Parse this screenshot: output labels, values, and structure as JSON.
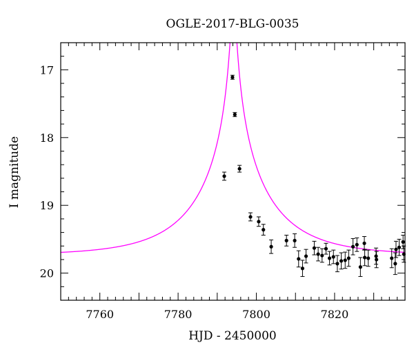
{
  "chart_data": {
    "type": "scatter",
    "title": "OGLE-2017-BLG-0035",
    "xlabel": "HJD - 2450000",
    "ylabel": "I magnitude",
    "xlim": [
      7750,
      7838
    ],
    "ylim": [
      20.4,
      16.6
    ],
    "y_inverted": true,
    "x_ticks": [
      7760,
      7780,
      7800,
      7820
    ],
    "y_ticks": [
      17,
      18,
      19,
      20
    ],
    "grid": false,
    "legend": "none",
    "colors": {
      "points": "#000000",
      "model": "#ff00ff"
    },
    "series": [
      {
        "kind": "points_with_errorbars",
        "points": [
          {
            "x": 7791.8,
            "y": 18.57,
            "err": 0.06
          },
          {
            "x": 7793.9,
            "y": 17.11,
            "err": 0.03
          },
          {
            "x": 7794.5,
            "y": 17.66,
            "err": 0.03
          },
          {
            "x": 7795.7,
            "y": 18.46,
            "err": 0.05
          },
          {
            "x": 7798.5,
            "y": 19.17,
            "err": 0.06
          },
          {
            "x": 7800.6,
            "y": 19.24,
            "err": 0.07
          },
          {
            "x": 7801.8,
            "y": 19.36,
            "err": 0.08
          },
          {
            "x": 7803.8,
            "y": 19.61,
            "err": 0.1
          },
          {
            "x": 7807.7,
            "y": 19.52,
            "err": 0.08
          },
          {
            "x": 7809.8,
            "y": 19.52,
            "err": 0.1
          },
          {
            "x": 7810.8,
            "y": 19.79,
            "err": 0.12
          },
          {
            "x": 7811.8,
            "y": 19.93,
            "err": 0.12
          },
          {
            "x": 7812.7,
            "y": 19.75,
            "err": 0.1
          },
          {
            "x": 7814.8,
            "y": 19.63,
            "err": 0.1
          },
          {
            "x": 7815.8,
            "y": 19.72,
            "err": 0.1
          },
          {
            "x": 7816.8,
            "y": 19.74,
            "err": 0.1
          },
          {
            "x": 7817.8,
            "y": 19.64,
            "err": 0.08
          },
          {
            "x": 7818.7,
            "y": 19.78,
            "err": 0.1
          },
          {
            "x": 7819.7,
            "y": 19.76,
            "err": 0.1
          },
          {
            "x": 7820.7,
            "y": 19.86,
            "err": 0.12
          },
          {
            "x": 7821.7,
            "y": 19.82,
            "err": 0.12
          },
          {
            "x": 7822.7,
            "y": 19.81,
            "err": 0.12
          },
          {
            "x": 7823.6,
            "y": 19.78,
            "err": 0.12
          },
          {
            "x": 7824.7,
            "y": 19.61,
            "err": 0.12
          },
          {
            "x": 7825.7,
            "y": 19.58,
            "err": 0.1
          },
          {
            "x": 7826.6,
            "y": 19.91,
            "err": 0.14
          },
          {
            "x": 7827.6,
            "y": 19.56,
            "err": 0.1
          },
          {
            "x": 7827.7,
            "y": 19.77,
            "err": 0.12
          },
          {
            "x": 7828.6,
            "y": 19.78,
            "err": 0.12
          },
          {
            "x": 7830.6,
            "y": 19.75,
            "err": 0.12
          },
          {
            "x": 7830.7,
            "y": 19.8,
            "err": 0.12
          },
          {
            "x": 7834.6,
            "y": 19.78,
            "err": 0.14
          },
          {
            "x": 7835.5,
            "y": 19.86,
            "err": 0.16
          },
          {
            "x": 7835.7,
            "y": 19.65,
            "err": 0.12
          },
          {
            "x": 7836.5,
            "y": 19.62,
            "err": 0.12
          },
          {
            "x": 7837.5,
            "y": 19.54,
            "err": 0.1
          },
          {
            "x": 7837.7,
            "y": 19.72,
            "err": 0.12
          }
        ]
      },
      {
        "kind": "model_curve",
        "baseline_mag": 19.735,
        "t0": 7794.15,
        "tE": 19.0,
        "u0": 0.031
      }
    ]
  }
}
